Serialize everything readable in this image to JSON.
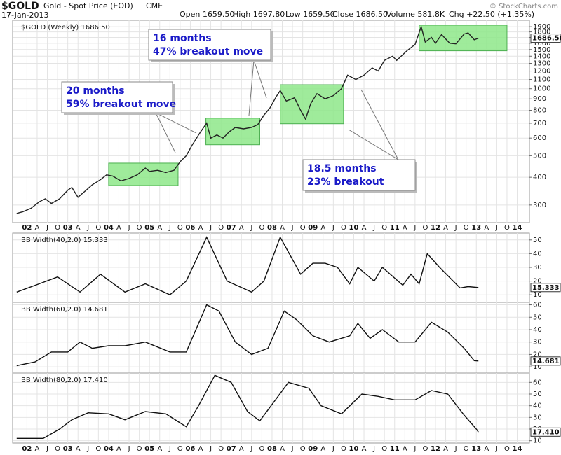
{
  "header": {
    "symbol": "$GOLD",
    "description": "Gold - Spot Price (EOD)",
    "exchange": "CME",
    "date": "17-Jan-2013",
    "quote": [
      "Open 1659.50",
      "High 1697.80",
      "Low 1659.50",
      "Close 1686.50",
      "Volume 581.8K",
      "Chg +22.50 (+1.35%)"
    ],
    "credit": "© StockCharts.com"
  },
  "chart_data": [
    {
      "type": "line",
      "title": "$GOLD (Weekly) 1686.50",
      "log_scale": true,
      "color": "#222222",
      "grid": true,
      "x": [
        2001.75,
        2001.9,
        2002.1,
        2002.3,
        2002.45,
        2002.6,
        2002.8,
        2003.0,
        2003.1,
        2003.25,
        2003.45,
        2003.6,
        2003.8,
        2003.95,
        2004.1,
        2004.3,
        2004.5,
        2004.7,
        2004.9,
        2005.0,
        2005.2,
        2005.4,
        2005.6,
        2005.75,
        2005.9,
        2006.05,
        2006.25,
        2006.4,
        2006.5,
        2006.65,
        2006.8,
        2006.95,
        2007.1,
        2007.3,
        2007.5,
        2007.65,
        2007.8,
        2007.95,
        2008.1,
        2008.2,
        2008.35,
        2008.55,
        2008.7,
        2008.82,
        2008.95,
        2009.1,
        2009.3,
        2009.5,
        2009.7,
        2009.85,
        2010.05,
        2010.25,
        2010.45,
        2010.6,
        2010.75,
        2010.95,
        2011.05,
        2011.3,
        2011.5,
        2011.65,
        2011.75,
        2011.9,
        2012.0,
        2012.15,
        2012.35,
        2012.5,
        2012.7,
        2012.8,
        2012.95,
        2013.05
      ],
      "values": [
        275,
        280,
        290,
        310,
        320,
        305,
        320,
        350,
        360,
        325,
        350,
        370,
        390,
        410,
        405,
        385,
        395,
        410,
        440,
        425,
        430,
        420,
        430,
        470,
        500,
        560,
        640,
        700,
        600,
        620,
        600,
        640,
        670,
        660,
        670,
        690,
        760,
        820,
        920,
        980,
        880,
        910,
        800,
        730,
        860,
        950,
        900,
        930,
        1000,
        1150,
        1100,
        1150,
        1240,
        1200,
        1340,
        1400,
        1340,
        1480,
        1580,
        1900,
        1620,
        1700,
        1600,
        1750,
        1600,
        1590,
        1760,
        1780,
        1660,
        1686.5
      ],
      "last_label": "1686.50",
      "xlim": [
        2001.65,
        2014.3
      ],
      "xticks": [
        {
          "value": 2002,
          "label": "02"
        },
        {
          "value": 2002.25,
          "label": "A"
        },
        {
          "value": 2002.5,
          "label": "J"
        },
        {
          "value": 2002.75,
          "label": "O"
        },
        {
          "value": 2003,
          "label": "03"
        },
        {
          "value": 2003.25,
          "label": "A"
        },
        {
          "value": 2003.5,
          "label": "J"
        },
        {
          "value": 2003.75,
          "label": "O"
        },
        {
          "value": 2004,
          "label": "04"
        },
        {
          "value": 2004.25,
          "label": "A"
        },
        {
          "value": 2004.5,
          "label": "J"
        },
        {
          "value": 2004.75,
          "label": "O"
        },
        {
          "value": 2005,
          "label": "05"
        },
        {
          "value": 2005.25,
          "label": "A"
        },
        {
          "value": 2005.5,
          "label": "J"
        },
        {
          "value": 2005.75,
          "label": "O"
        },
        {
          "value": 2006,
          "label": "06"
        },
        {
          "value": 2006.25,
          "label": "A"
        },
        {
          "value": 2006.5,
          "label": "J"
        },
        {
          "value": 2006.75,
          "label": "O"
        },
        {
          "value": 2007,
          "label": "07"
        },
        {
          "value": 2007.25,
          "label": "A"
        },
        {
          "value": 2007.5,
          "label": "J"
        },
        {
          "value": 2007.75,
          "label": "O"
        },
        {
          "value": 2008,
          "label": "08"
        },
        {
          "value": 2008.25,
          "label": "A"
        },
        {
          "value": 2008.5,
          "label": "J"
        },
        {
          "value": 2008.75,
          "label": "O"
        },
        {
          "value": 2009,
          "label": "09"
        },
        {
          "value": 2009.25,
          "label": "A"
        },
        {
          "value": 2009.5,
          "label": "J"
        },
        {
          "value": 2009.75,
          "label": "O"
        },
        {
          "value": 2010,
          "label": "10"
        },
        {
          "value": 2010.25,
          "label": "A"
        },
        {
          "value": 2010.5,
          "label": "J"
        },
        {
          "value": 2010.75,
          "label": "O"
        },
        {
          "value": 2011,
          "label": "11"
        },
        {
          "value": 2011.25,
          "label": "A"
        },
        {
          "value": 2011.5,
          "label": "J"
        },
        {
          "value": 2011.75,
          "label": "O"
        },
        {
          "value": 2012,
          "label": "12"
        },
        {
          "value": 2012.25,
          "label": "A"
        },
        {
          "value": 2012.5,
          "label": "J"
        },
        {
          "value": 2012.75,
          "label": "O"
        },
        {
          "value": 2013,
          "label": "13"
        },
        {
          "value": 2013.25,
          "label": "A"
        },
        {
          "value": 2013.5,
          "label": "J"
        },
        {
          "value": 2013.75,
          "label": "O"
        },
        {
          "value": 2014,
          "label": "14"
        }
      ],
      "ylim": [
        250,
        2030
      ],
      "yticks": [
        300,
        400,
        500,
        600,
        700,
        800,
        900,
        1000,
        1100,
        1200,
        1300,
        1400,
        1500,
        1600,
        1700,
        1800,
        1900
      ],
      "box_color": "#8ee88a",
      "boxes": [
        {
          "x": [
            2004.0,
            2005.7
          ],
          "y": [
            367,
            463
          ]
        },
        {
          "x": [
            2006.38,
            2007.7
          ],
          "y": [
            560,
            737
          ]
        },
        {
          "x": [
            2008.2,
            2009.75
          ],
          "y": [
            696,
            1042
          ]
        },
        {
          "x": [
            2011.6,
            2013.75
          ],
          "y": [
            1480,
            1930
          ]
        }
      ],
      "annotation_color": "#1a1ac8",
      "annotations": [
        [
          "20 months",
          "59% breakout move"
        ],
        [
          "16 months",
          "47% breakout move"
        ],
        [
          "18.5 months",
          "23% breakout"
        ]
      ]
    },
    {
      "type": "line",
      "title": "BB Width(40,2.0) 15.333",
      "color": "#111111",
      "grid": true,
      "x": [
        2001.75,
        2002.3,
        2002.75,
        2003.3,
        2003.8,
        2004.4,
        2004.9,
        2005.5,
        2005.9,
        2006.4,
        2006.9,
        2007.5,
        2007.8,
        2008.2,
        2008.7,
        2009.0,
        2009.3,
        2009.6,
        2009.9,
        2010.1,
        2010.5,
        2010.7,
        2011.2,
        2011.4,
        2011.6,
        2011.8,
        2012.1,
        2012.6,
        2012.8,
        2013.05
      ],
      "values": [
        12,
        18,
        23,
        12,
        25,
        12,
        18,
        10,
        20,
        52,
        20,
        12,
        20,
        52,
        25,
        33,
        33,
        30,
        18,
        30,
        20,
        30,
        17,
        25,
        18,
        40,
        30,
        15,
        16,
        15.333
      ],
      "last_label": "15.333",
      "xlim": [
        2001.65,
        2014.3
      ],
      "ylim": [
        4.5,
        55
      ],
      "yticks": [
        10,
        20,
        30,
        40,
        50
      ]
    },
    {
      "type": "line",
      "title": "BB Width(60,2.0) 14.681",
      "color": "#111111",
      "grid": true,
      "x": [
        2001.75,
        2002.2,
        2002.6,
        2003.0,
        2003.3,
        2003.6,
        2004.0,
        2004.4,
        2004.9,
        2005.5,
        2005.9,
        2006.4,
        2006.7,
        2007.1,
        2007.5,
        2007.9,
        2008.3,
        2008.6,
        2009.0,
        2009.4,
        2009.9,
        2010.1,
        2010.4,
        2010.7,
        2011.1,
        2011.5,
        2011.9,
        2012.3,
        2012.7,
        2012.95,
        2013.05
      ],
      "values": [
        11,
        14,
        22,
        22,
        30,
        25,
        27,
        27,
        30,
        22,
        22,
        60,
        55,
        30,
        20,
        25,
        55,
        48,
        35,
        30,
        35,
        45,
        33,
        40,
        30,
        30,
        46,
        38,
        25,
        15,
        14.681
      ],
      "last_label": "14.681",
      "xlim": [
        2001.65,
        2014.3
      ],
      "ylim": [
        5,
        62
      ],
      "yticks": [
        10,
        20,
        30,
        40,
        50,
        60
      ]
    },
    {
      "type": "line",
      "title": "BB Width(80,2.0) 17.410",
      "color": "#111111",
      "grid": true,
      "x": [
        2001.75,
        2002.4,
        2002.8,
        2003.1,
        2003.5,
        2004.0,
        2004.4,
        2004.9,
        2005.4,
        2005.9,
        2006.2,
        2006.6,
        2007.0,
        2007.4,
        2007.7,
        2008.4,
        2008.9,
        2009.2,
        2009.7,
        2010.2,
        2010.6,
        2011.0,
        2011.5,
        2011.9,
        2012.3,
        2012.7,
        2013.0,
        2013.05
      ],
      "values": [
        12,
        12,
        20,
        28,
        34,
        33,
        28,
        35,
        33,
        22,
        40,
        66,
        60,
        35,
        27,
        60,
        55,
        40,
        33,
        50,
        48,
        45,
        45,
        53,
        50,
        32,
        20,
        17.41
      ],
      "last_label": "17.410",
      "xlim": [
        2001.65,
        2014.3
      ],
      "ylim": [
        8,
        68
      ],
      "yticks": [
        10,
        20,
        30,
        40,
        50,
        60
      ]
    }
  ]
}
